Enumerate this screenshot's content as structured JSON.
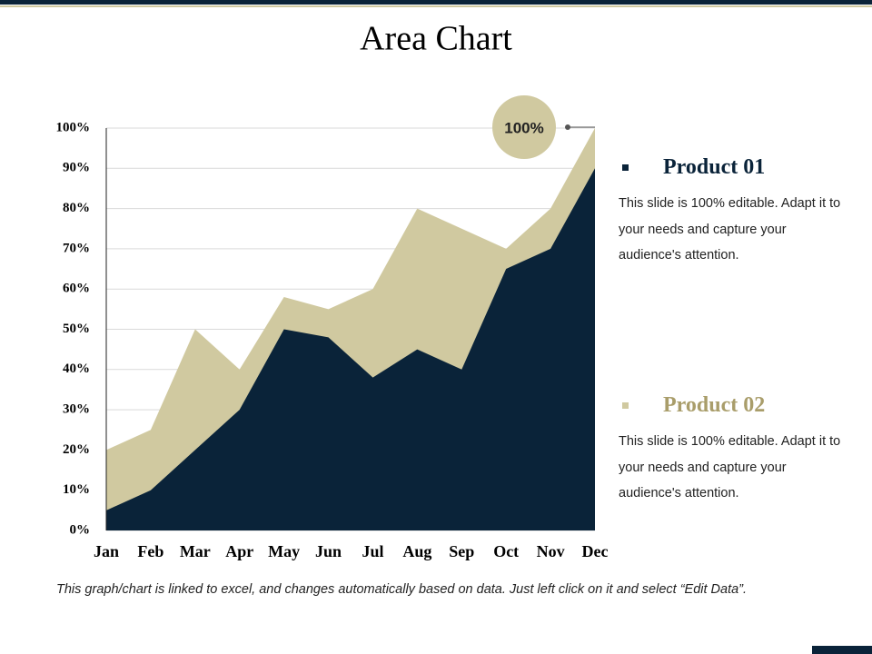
{
  "chart_data": {
    "type": "area",
    "title": "Area Chart",
    "categories": [
      "Jan",
      "Feb",
      "Mar",
      "Apr",
      "May",
      "Jun",
      "Jul",
      "Aug",
      "Sep",
      "Oct",
      "Nov",
      "Dec"
    ],
    "series": [
      {
        "name": "Product 01",
        "color": "#0a2339",
        "values": [
          5,
          10,
          20,
          30,
          50,
          48,
          38,
          45,
          40,
          65,
          70,
          90
        ],
        "description": "This slide is 100% editable. Adapt it to your needs and capture your audience's attention."
      },
      {
        "name": "Product 02",
        "color": "#d0c9a0",
        "values": [
          20,
          25,
          50,
          40,
          58,
          55,
          60,
          80,
          75,
          70,
          80,
          100
        ],
        "description": "This slide is 100% editable. Adapt it to your needs and capture your audience's attention."
      }
    ],
    "ylim": [
      0,
      100
    ],
    "yticks": [
      {
        "value": 0,
        "label": "0%"
      },
      {
        "value": 10,
        "label": "10%"
      },
      {
        "value": 20,
        "label": "20%"
      },
      {
        "value": 30,
        "label": "30%"
      },
      {
        "value": 40,
        "label": "40%"
      },
      {
        "value": 50,
        "label": "50%"
      },
      {
        "value": 60,
        "label": "60%"
      },
      {
        "value": 70,
        "label": "70%"
      },
      {
        "value": 80,
        "label": "80%"
      },
      {
        "value": 90,
        "label": "90%"
      },
      {
        "value": 100,
        "label": "100%"
      }
    ],
    "grid": true,
    "annotation": "100%",
    "note": "This graph/chart is linked to excel, and changes automatically based on data. Just left click on it and select “Edit Data”."
  }
}
